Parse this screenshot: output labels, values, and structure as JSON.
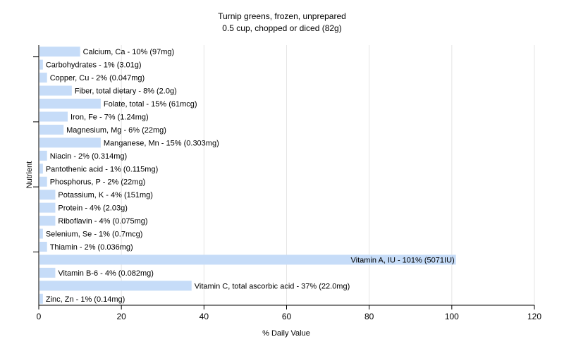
{
  "chart_data": {
    "type": "bar",
    "orientation": "horizontal",
    "title": "Turnip greens, frozen, unprepared",
    "subtitle": "0.5 cup, chopped or diced (82g)",
    "xlabel": "% Daily Value",
    "ylabel": "Nutrient",
    "xlim": [
      0,
      120
    ],
    "xticks": [
      "0",
      "20",
      "40",
      "60",
      "80",
      "100",
      "120"
    ],
    "grid": true,
    "legend": "none",
    "bar_color": "#c6dcf8",
    "categories": [
      "Calcium, Ca",
      "Carbohydrates",
      "Copper, Cu",
      "Fiber, total dietary",
      "Folate, total",
      "Iron, Fe",
      "Magnesium, Mg",
      "Manganese, Mn",
      "Niacin",
      "Pantothenic acid",
      "Phosphorus, P",
      "Potassium, K",
      "Protein",
      "Riboflavin",
      "Selenium, Se",
      "Thiamin",
      "Vitamin A, IU",
      "Vitamin B-6",
      "Vitamin C, total ascorbic acid",
      "Zinc, Zn"
    ],
    "values": [
      10,
      1,
      2,
      8,
      15,
      7,
      6,
      15,
      2,
      1,
      2,
      4,
      4,
      4,
      1,
      2,
      101,
      4,
      37,
      1
    ],
    "labels": [
      "Calcium, Ca - 10% (97mg)",
      "Carbohydrates - 1% (3.01g)",
      "Copper, Cu - 2% (0.047mg)",
      "Fiber, total dietary - 8% (2.0g)",
      "Folate, total - 15% (61mcg)",
      "Iron, Fe - 7% (1.24mg)",
      "Magnesium, Mg - 6% (22mg)",
      "Manganese, Mn - 15% (0.303mg)",
      "Niacin - 2% (0.314mg)",
      "Pantothenic acid - 1% (0.115mg)",
      "Phosphorus, P - 2% (22mg)",
      "Potassium, K - 4% (151mg)",
      "Protein - 4% (2.03g)",
      "Riboflavin - 4% (0.075mg)",
      "Selenium, Se - 1% (0.7mcg)",
      "Thiamin - 2% (0.036mg)",
      "Vitamin A, IU - 101% (5071IU)",
      "Vitamin B-6 - 4% (0.082mg)",
      "Vitamin C, total ascorbic acid - 37% (22.0mg)",
      "Zinc, Zn - 1% (0.14mg)"
    ]
  }
}
